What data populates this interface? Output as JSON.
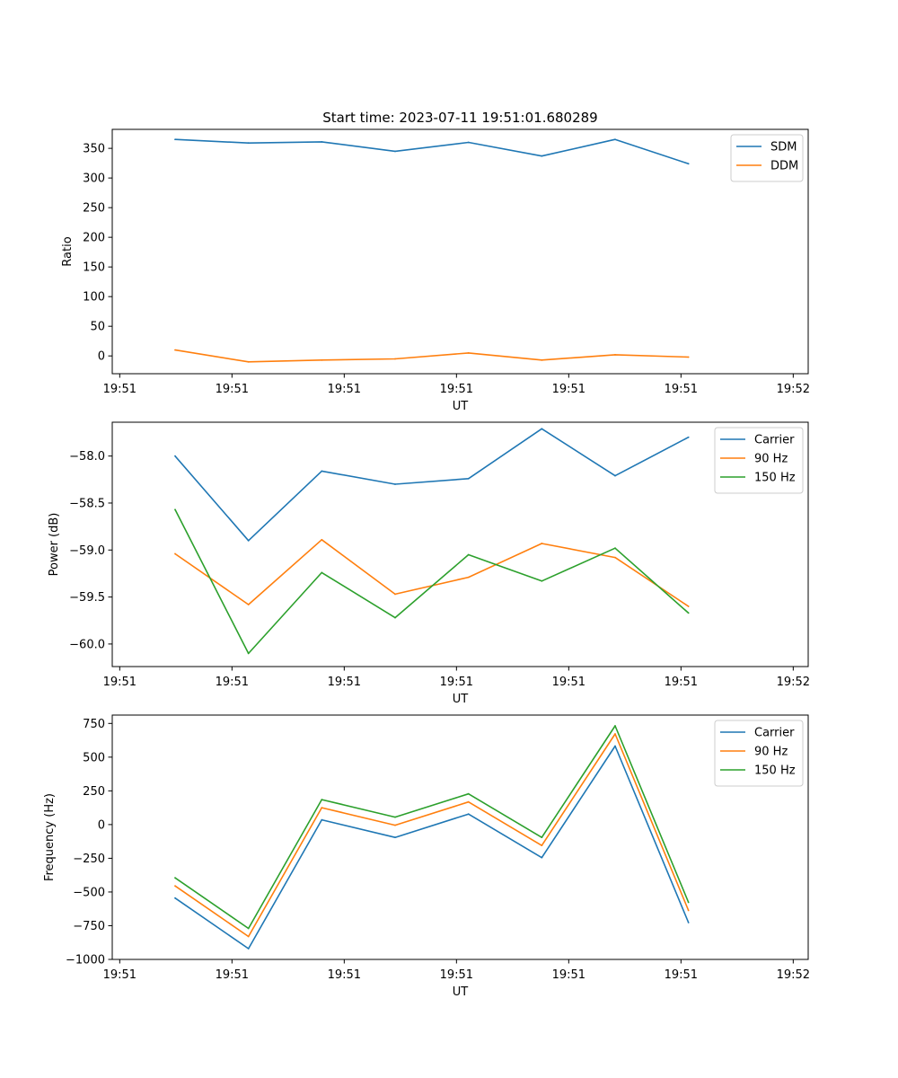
{
  "chart_data": [
    {
      "type": "line",
      "title": "Start time: 2023-07-11 19:51:01.680289",
      "xlabel": "UT",
      "ylabel": "Ratio",
      "xlim": [
        0,
        9.3
      ],
      "xticks": [
        0.1,
        1.6,
        3.1,
        4.6,
        6.1,
        7.6,
        9.1
      ],
      "xtick_labels": [
        "19:51",
        "19:51",
        "19:51",
        "19:51",
        "19:51",
        "19:51",
        "19:52"
      ],
      "ylim": [
        -30,
        382
      ],
      "yticks": [
        0,
        50,
        100,
        150,
        200,
        250,
        300,
        350
      ],
      "legend_position": "top-right",
      "x": [
        0.84,
        1.82,
        2.8,
        3.78,
        4.76,
        5.74,
        6.72,
        7.7
      ],
      "series": [
        {
          "name": "SDM",
          "color": "#1f77b4",
          "values": [
            365,
            359,
            361,
            345,
            360,
            337,
            365,
            324
          ]
        },
        {
          "name": "DDM",
          "color": "#ff7f0e",
          "values": [
            10,
            -10,
            -7,
            -5,
            5,
            -7,
            2,
            -2
          ]
        }
      ]
    },
    {
      "type": "line",
      "title": "",
      "xlabel": "UT",
      "ylabel": "Power (dB)",
      "xlim": [
        0,
        9.3
      ],
      "xticks": [
        0.1,
        1.6,
        3.1,
        4.6,
        6.1,
        7.6,
        9.1
      ],
      "xtick_labels": [
        "19:51",
        "19:51",
        "19:51",
        "19:51",
        "19:51",
        "19:51",
        "19:52"
      ],
      "ylim": [
        -60.24,
        -57.64
      ],
      "yticks": [
        -60.0,
        -59.5,
        -59.0,
        -58.5,
        -58.0
      ],
      "ytick_labels": [
        "−60.0",
        "−59.5",
        "−59.0",
        "−58.5",
        "−58.0"
      ],
      "legend_position": "top-right",
      "x": [
        0.84,
        1.82,
        2.8,
        3.78,
        4.76,
        5.74,
        6.72,
        7.7
      ],
      "series": [
        {
          "name": "Carrier",
          "color": "#1f77b4",
          "values": [
            -58.0,
            -58.9,
            -58.16,
            -58.3,
            -58.24,
            -57.71,
            -58.21,
            -57.8
          ]
        },
        {
          "name": "90 Hz",
          "color": "#ff7f0e",
          "values": [
            -59.04,
            -59.58,
            -58.89,
            -59.47,
            -59.29,
            -58.93,
            -59.08,
            -59.6
          ]
        },
        {
          "name": "150 Hz",
          "color": "#2ca02c",
          "values": [
            -58.57,
            -60.1,
            -59.24,
            -59.72,
            -59.05,
            -59.33,
            -58.98,
            -59.67
          ]
        }
      ]
    },
    {
      "type": "line",
      "title": "",
      "xlabel": "UT",
      "ylabel": "Frequency (Hz)",
      "xlim": [
        0,
        9.3
      ],
      "xticks": [
        0.1,
        1.6,
        3.1,
        4.6,
        6.1,
        7.6,
        9.1
      ],
      "xtick_labels": [
        "19:51",
        "19:51",
        "19:51",
        "19:51",
        "19:51",
        "19:51",
        "19:52"
      ],
      "ylim": [
        -1000,
        812
      ],
      "yticks": [
        -1000,
        -750,
        -500,
        -250,
        0,
        250,
        500,
        750
      ],
      "ytick_labels": [
        "−1000",
        "−750",
        "−500",
        "−250",
        "0",
        "250",
        "500",
        "750"
      ],
      "legend_position": "top-right",
      "x": [
        0.84,
        1.82,
        2.8,
        3.78,
        4.76,
        5.74,
        6.72,
        7.7
      ],
      "series": [
        {
          "name": "Carrier",
          "color": "#1f77b4",
          "values": [
            -545,
            -920,
            35,
            -95,
            78,
            -245,
            582,
            -727
          ]
        },
        {
          "name": "90 Hz",
          "color": "#ff7f0e",
          "values": [
            -455,
            -830,
            125,
            -5,
            168,
            -155,
            672,
            -637
          ]
        },
        {
          "name": "150 Hz",
          "color": "#2ca02c",
          "values": [
            -395,
            -770,
            185,
            55,
            228,
            -95,
            732,
            -577
          ]
        }
      ]
    }
  ]
}
